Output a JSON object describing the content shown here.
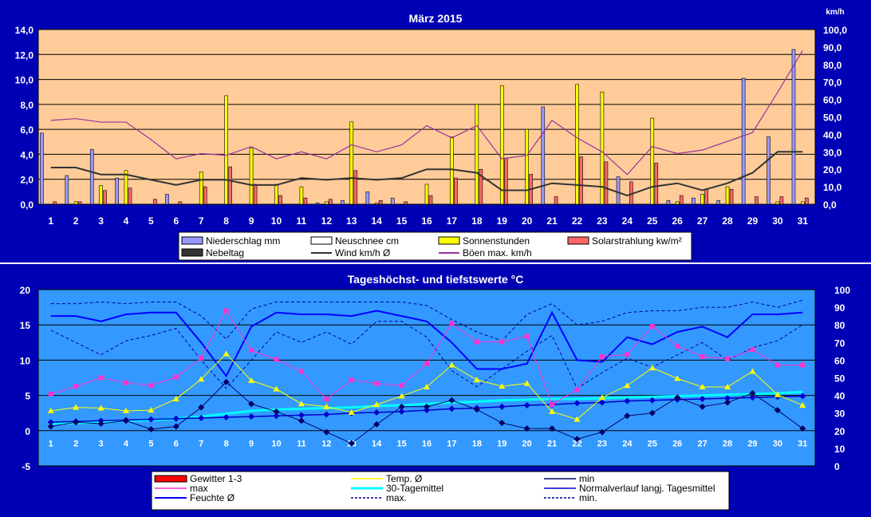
{
  "chart_data": [
    {
      "type": "bar",
      "title": "März  2015",
      "right_unit": "km/h",
      "x": [
        1,
        2,
        3,
        4,
        5,
        6,
        7,
        8,
        9,
        10,
        11,
        12,
        13,
        14,
        15,
        16,
        17,
        18,
        19,
        20,
        21,
        22,
        23,
        24,
        25,
        26,
        27,
        28,
        29,
        30,
        31
      ],
      "ylim": [
        0,
        14
      ],
      "yticks": [
        "0,0",
        "2,0",
        "4,0",
        "6,0",
        "8,0",
        "10,0",
        "12,0",
        "14,0"
      ],
      "y2lim": [
        0,
        100
      ],
      "y2ticks": [
        "0,0",
        "10,0",
        "20,0",
        "30,0",
        "40,0",
        "50,0",
        "60,0",
        "70,0",
        "80,0",
        "90,0",
        "100,0"
      ],
      "grid": true,
      "colors": {
        "plot_bg": "#ffcc99",
        "niederschlag": "#9999ff",
        "neuschnee": "#ffffff",
        "sonne": "#ffff00",
        "solar": "#ff6666",
        "nebel": "#333333",
        "wind": "#333333",
        "boeen": "#993399"
      },
      "series": [
        {
          "name": "Niederschlag mm",
          "kind": "bar",
          "values": [
            5.7,
            2.3,
            4.4,
            2.1,
            0,
            0.8,
            0,
            0,
            0,
            0,
            0,
            0.1,
            0.3,
            1.0,
            0.5,
            0,
            0,
            0,
            0,
            0,
            7.8,
            0,
            0,
            2.2,
            0,
            0.3,
            0.5,
            0.3,
            10.1,
            5.4,
            12.4
          ]
        },
        {
          "name": "Neuschnee cm",
          "kind": "bar",
          "values": [
            0,
            0,
            0,
            0,
            0,
            0,
            0,
            0,
            0,
            0,
            0,
            0,
            0,
            0,
            0,
            0,
            0,
            0,
            0,
            0,
            0,
            0,
            0,
            0,
            0,
            0,
            0,
            0,
            0,
            0,
            0
          ]
        },
        {
          "name": "Sonnenstunden",
          "kind": "bar",
          "values": [
            0,
            0.2,
            1.5,
            2.7,
            0,
            0,
            2.6,
            8.7,
            4.5,
            1.6,
            1.4,
            0.2,
            6.6,
            0.1,
            0,
            1.6,
            5.4,
            8.0,
            9.5,
            6.0,
            0,
            9.6,
            9.0,
            0,
            6.9,
            0.2,
            0.8,
            1.4,
            0,
            0.2,
            0.2
          ]
        },
        {
          "name": "Solarstrahlung kw/m²",
          "kind": "bar",
          "values": [
            0.2,
            0.2,
            1.1,
            1.3,
            0.4,
            0.2,
            1.4,
            3.0,
            1.6,
            0.7,
            0.5,
            0.4,
            2.7,
            0.3,
            0.2,
            0.7,
            2.1,
            2.8,
            3.7,
            2.4,
            0.6,
            3.8,
            3.4,
            1.8,
            3.3,
            0.7,
            1.2,
            1.2,
            0.6,
            0.6,
            0.5
          ]
        },
        {
          "name": "Nebeltag",
          "kind": "bar",
          "values": [
            0,
            0,
            0,
            0,
            0,
            0,
            0,
            0,
            0,
            0,
            0,
            0,
            0,
            0,
            0,
            0,
            0,
            0,
            0,
            0,
            0,
            0,
            0,
            0,
            0,
            0,
            0,
            0,
            0,
            0,
            0
          ]
        },
        {
          "name": "Wind km/h Ø",
          "kind": "line",
          "axis": "right",
          "values": [
            21,
            21,
            17,
            17,
            14,
            11,
            14,
            14,
            11,
            11,
            15,
            14,
            15,
            14,
            15,
            20,
            20,
            18,
            8,
            8,
            12,
            11,
            10,
            5,
            10,
            12,
            8,
            12,
            18,
            30,
            30
          ]
        },
        {
          "name": "Böen max. km/h",
          "kind": "line",
          "axis": "right",
          "values": [
            48,
            49,
            47,
            47,
            37,
            26,
            29,
            28,
            33,
            26,
            30,
            26,
            34,
            30,
            34,
            45,
            38,
            45,
            26,
            28,
            48,
            38,
            30,
            17,
            33,
            29,
            31,
            36,
            41,
            64,
            88
          ]
        }
      ],
      "legend": "bottom-center"
    },
    {
      "type": "line",
      "title": "Tageshöchst- und tiefstswerte °C",
      "x": [
        1,
        2,
        3,
        4,
        5,
        6,
        7,
        8,
        9,
        10,
        11,
        12,
        13,
        14,
        15,
        16,
        17,
        18,
        19,
        20,
        21,
        22,
        23,
        24,
        25,
        26,
        27,
        28,
        29,
        30,
        31
      ],
      "ylim": [
        -5,
        20
      ],
      "yticks": [
        "-5",
        "0",
        "5",
        "10",
        "15",
        "20"
      ],
      "y2lim": [
        0,
        100
      ],
      "y2ticks": [
        "0",
        "10",
        "20",
        "30",
        "40",
        "50",
        "60",
        "70",
        "80",
        "90",
        "100"
      ],
      "grid": true,
      "colors": {
        "plot_bg": "#3399ff",
        "gewitter": "#ff0000",
        "temp": "#ffff00",
        "min": "#000066",
        "max": "#ff33cc",
        "mittel30": "#00ffff",
        "normal": "#0000cc",
        "feuchte": "#0000ff",
        "feuchte_max": "#000099",
        "feuchte_min": "#000099"
      },
      "series": [
        {
          "name": "Gewitter 1-3",
          "kind": "bar",
          "values": [
            0,
            0,
            0,
            0,
            0,
            0,
            0,
            0,
            0,
            0,
            0,
            0,
            0,
            0,
            0,
            0,
            0,
            0,
            0,
            0,
            0,
            0,
            0,
            0,
            0,
            0,
            0,
            0,
            0,
            0,
            0
          ]
        },
        {
          "name": "Temp. Ø",
          "kind": "line",
          "values": [
            2.8,
            3.3,
            3.2,
            2.8,
            2.9,
            4.5,
            7.3,
            10.9,
            7.1,
            5.9,
            3.8,
            3.4,
            2.6,
            3.7,
            4.9,
            6.2,
            9.3,
            7.2,
            6.3,
            6.7,
            2.7,
            1.6,
            4.7,
            6.4,
            8.9,
            7.4,
            6.2,
            6.2,
            8.4,
            5.1,
            3.6
          ]
        },
        {
          "name": "min",
          "kind": "line",
          "values": [
            0.6,
            1.2,
            1.0,
            1.4,
            0.2,
            0.6,
            3.3,
            6.9,
            3.8,
            2.7,
            1.4,
            -0.2,
            -1.8,
            0.9,
            3.4,
            3.4,
            4.3,
            3.0,
            1.1,
            0.3,
            0.3,
            -1.2,
            -0.2,
            2.1,
            2.5,
            4.7,
            3.4,
            4.0,
            5.3,
            2.9,
            0.3
          ]
        },
        {
          "name": "max",
          "kind": "line",
          "values": [
            5.2,
            6.3,
            7.5,
            6.8,
            6.4,
            7.6,
            10.3,
            17.0,
            11.4,
            10.1,
            8.4,
            4.5,
            7.2,
            6.7,
            6.4,
            9.5,
            15.2,
            12.6,
            12.6,
            13.4,
            3.7,
            5.8,
            10.5,
            10.8,
            14.8,
            12.0,
            10.5,
            10.2,
            11.5,
            9.3,
            9.3
          ]
        },
        {
          "name": "30-Tagemittel",
          "kind": "line",
          "values": [
            1.0,
            1.1,
            1.2,
            1.4,
            1.5,
            1.7,
            2.0,
            2.4,
            2.8,
            3.0,
            3.1,
            3.2,
            3.3,
            3.5,
            3.6,
            3.8,
            4.0,
            4.1,
            4.3,
            4.4,
            4.5,
            4.5,
            4.6,
            4.7,
            4.8,
            4.9,
            5.0,
            5.1,
            5.2,
            5.3,
            5.5
          ]
        },
        {
          "name": "Normalverlauf langj. Tagesmittel",
          "kind": "line",
          "values": [
            1.2,
            1.3,
            1.4,
            1.5,
            1.6,
            1.7,
            1.8,
            1.9,
            2.0,
            2.1,
            2.2,
            2.3,
            2.5,
            2.6,
            2.7,
            2.9,
            3.1,
            3.2,
            3.4,
            3.6,
            3.7,
            3.9,
            4.0,
            4.2,
            4.3,
            4.4,
            4.5,
            4.6,
            4.7,
            4.8,
            4.9
          ]
        },
        {
          "name": "Feuchte Ø",
          "kind": "line",
          "axis": "right",
          "values": [
            85,
            85,
            82,
            86,
            87,
            87,
            70,
            51,
            79,
            87,
            86,
            86,
            85,
            88,
            85,
            82,
            70,
            55,
            55,
            58,
            87,
            60,
            59,
            73,
            69,
            76,
            79,
            73,
            86,
            86,
            87
          ]
        },
        {
          "name": "max.",
          "kind": "line",
          "axis": "right",
          "values": [
            92,
            92,
            93,
            92,
            93,
            93,
            85,
            72,
            89,
            93,
            93,
            93,
            93,
            93,
            93,
            91,
            83,
            76,
            71,
            86,
            92,
            80,
            82,
            87,
            88,
            88,
            90,
            90,
            93,
            90,
            94
          ]
        },
        {
          "name": "min.",
          "kind": "line",
          "axis": "right",
          "values": [
            77,
            70,
            63,
            71,
            74,
            78,
            60,
            44,
            60,
            76,
            70,
            76,
            69,
            82,
            82,
            73,
            54,
            45,
            55,
            65,
            74,
            44,
            53,
            61,
            56,
            63,
            70,
            60,
            67,
            71,
            80
          ]
        }
      ],
      "legend": "bottom-center"
    }
  ]
}
